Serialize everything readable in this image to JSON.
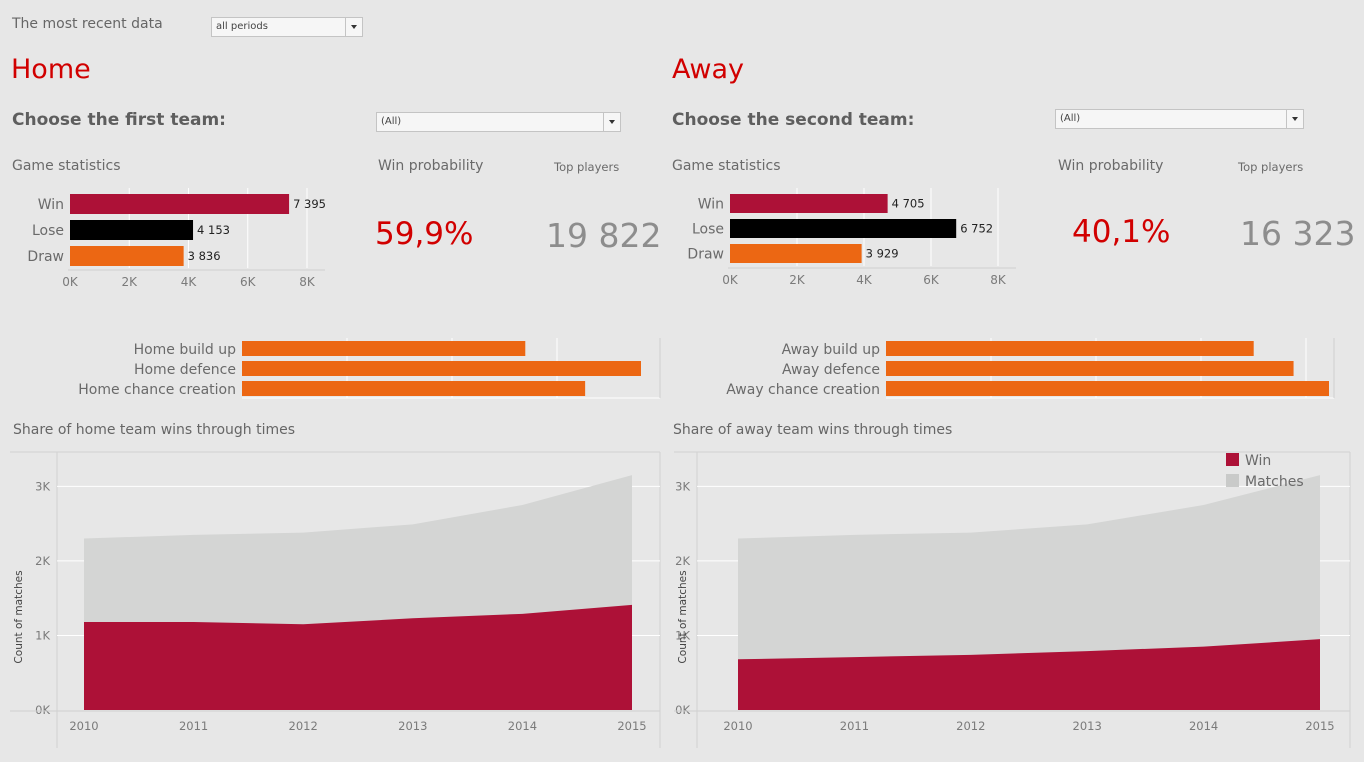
{
  "filter": {
    "label": "The most recent data",
    "value": "all periods"
  },
  "colors": {
    "win": "#ad1137",
    "lose": "#000000",
    "draw": "#ec6713",
    "matches": "#d4d5d4",
    "accent": "#d10000"
  },
  "home": {
    "title": "Home",
    "choose_label": "Choose the first team:",
    "team_value": "(All)",
    "game_stats_label": "Game statistics",
    "win_prob_label": "Win probability",
    "win_prob": "59,9%",
    "top_players_label": "Top players",
    "top_players": "19 822",
    "area_title": "Share of home team wins through times"
  },
  "away": {
    "title": "Away",
    "choose_label": "Choose the second team:",
    "team_value": "(All)",
    "game_stats_label": "Game statistics",
    "win_prob_label": "Win probability",
    "win_prob": "40,1%",
    "top_players_label": "Top players",
    "top_players": "16 323",
    "area_title": "Share of away team wins through times"
  },
  "chart_data": [
    {
      "id": "home_stats",
      "type": "bar",
      "orientation": "horizontal",
      "categories": [
        "Win",
        "Lose",
        "Draw"
      ],
      "values": [
        7395,
        4153,
        3836
      ],
      "labels": [
        "7 395",
        "4 153",
        "3 836"
      ],
      "xticks": [
        "0K",
        "2K",
        "4K",
        "6K",
        "8K"
      ],
      "xlim": [
        0,
        8000
      ]
    },
    {
      "id": "away_stats",
      "type": "bar",
      "orientation": "horizontal",
      "categories": [
        "Win",
        "Lose",
        "Draw"
      ],
      "values": [
        4705,
        6752,
        3929
      ],
      "labels": [
        "4 705",
        "6 752",
        "3 929"
      ],
      "xticks": [
        "0K",
        "2K",
        "4K",
        "6K",
        "8K"
      ],
      "xlim": [
        0,
        8000
      ]
    },
    {
      "id": "home_skills",
      "type": "bar",
      "orientation": "horizontal",
      "categories": [
        "Home build up",
        "Home defence",
        "Home chance creation"
      ],
      "values": [
        0.71,
        1.0,
        0.86
      ]
    },
    {
      "id": "away_skills",
      "type": "bar",
      "orientation": "horizontal",
      "categories": [
        "Away build up",
        "Away defence",
        "Away chance creation"
      ],
      "values": [
        0.83,
        0.92,
        1.0
      ]
    },
    {
      "id": "home_area",
      "type": "area",
      "x": [
        "2010",
        "2011",
        "2012",
        "2013",
        "2014",
        "2015"
      ],
      "series": [
        {
          "name": "Matches",
          "values": [
            2300,
            2350,
            2380,
            2490,
            2750,
            3150
          ]
        },
        {
          "name": "Win",
          "values": [
            1180,
            1180,
            1150,
            1230,
            1290,
            1410
          ]
        }
      ],
      "ylabel": "Count of matches",
      "yticks": [
        "0K",
        "1K",
        "2K",
        "3K"
      ],
      "ylim": [
        0,
        3300
      ]
    },
    {
      "id": "away_area",
      "type": "area",
      "x": [
        "2010",
        "2011",
        "2012",
        "2013",
        "2014",
        "2015"
      ],
      "series": [
        {
          "name": "Matches",
          "values": [
            2300,
            2350,
            2380,
            2490,
            2750,
            3150
          ]
        },
        {
          "name": "Win",
          "values": [
            680,
            710,
            740,
            790,
            850,
            950
          ]
        }
      ],
      "ylabel": "Count of matches",
      "yticks": [
        "0K",
        "1K",
        "2K",
        "3K"
      ],
      "ylim": [
        0,
        3300
      ],
      "legend": {
        "position": "top-right",
        "entries": [
          "Win",
          "Matches"
        ]
      }
    }
  ]
}
